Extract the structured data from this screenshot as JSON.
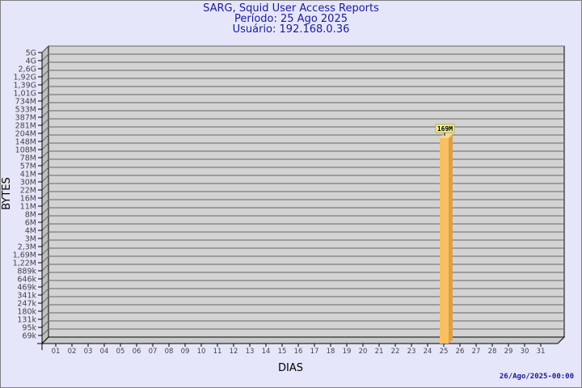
{
  "chart_data": {
    "type": "bar",
    "title": "SARG, Squid User Access Reports",
    "subtitle_period": "Período: 25 Ago 2025",
    "subtitle_user": "Usuário: 192.168.0.36",
    "xlabel": "DIAS",
    "ylabel": "BYTES",
    "categories": [
      "01",
      "02",
      "03",
      "04",
      "05",
      "06",
      "07",
      "08",
      "09",
      "10",
      "11",
      "12",
      "13",
      "14",
      "15",
      "16",
      "17",
      "18",
      "19",
      "20",
      "21",
      "22",
      "23",
      "24",
      "25",
      "26",
      "27",
      "28",
      "29",
      "30",
      "31"
    ],
    "series": [
      {
        "values": [
          0,
          0,
          0,
          0,
          0,
          0,
          0,
          0,
          0,
          0,
          0,
          0,
          0,
          0,
          0,
          0,
          0,
          0,
          0,
          0,
          0,
          0,
          0,
          0,
          169000000,
          0,
          0,
          0,
          0,
          0,
          0
        ]
      }
    ],
    "data_labels": {
      "25": "169M"
    },
    "y_ticks": [
      "5G",
      "4G",
      "2,6G",
      "1,92G",
      "1,39G",
      "1,01G",
      "734M",
      "533M",
      "387M",
      "281M",
      "204M",
      "148M",
      "108M",
      "78M",
      "57M",
      "41M",
      "30M",
      "22M",
      "16M",
      "11M",
      "8M",
      "6M",
      "4M",
      "3M",
      "2,3M",
      "1,69M",
      "1,22M",
      "889k",
      "646k",
      "469k",
      "341k",
      "247k",
      "180k",
      "131k",
      "95k",
      "69k"
    ],
    "y_scale": "log",
    "grid": true,
    "colors": {
      "bar": "#f8c060",
      "bar_side": "#e0a040",
      "plot": "#d3d3d3",
      "background": "#e6e6fa",
      "title": "#1a1a9a"
    }
  },
  "footer": {
    "timestamp": "26/Ago/2025-00:00"
  }
}
